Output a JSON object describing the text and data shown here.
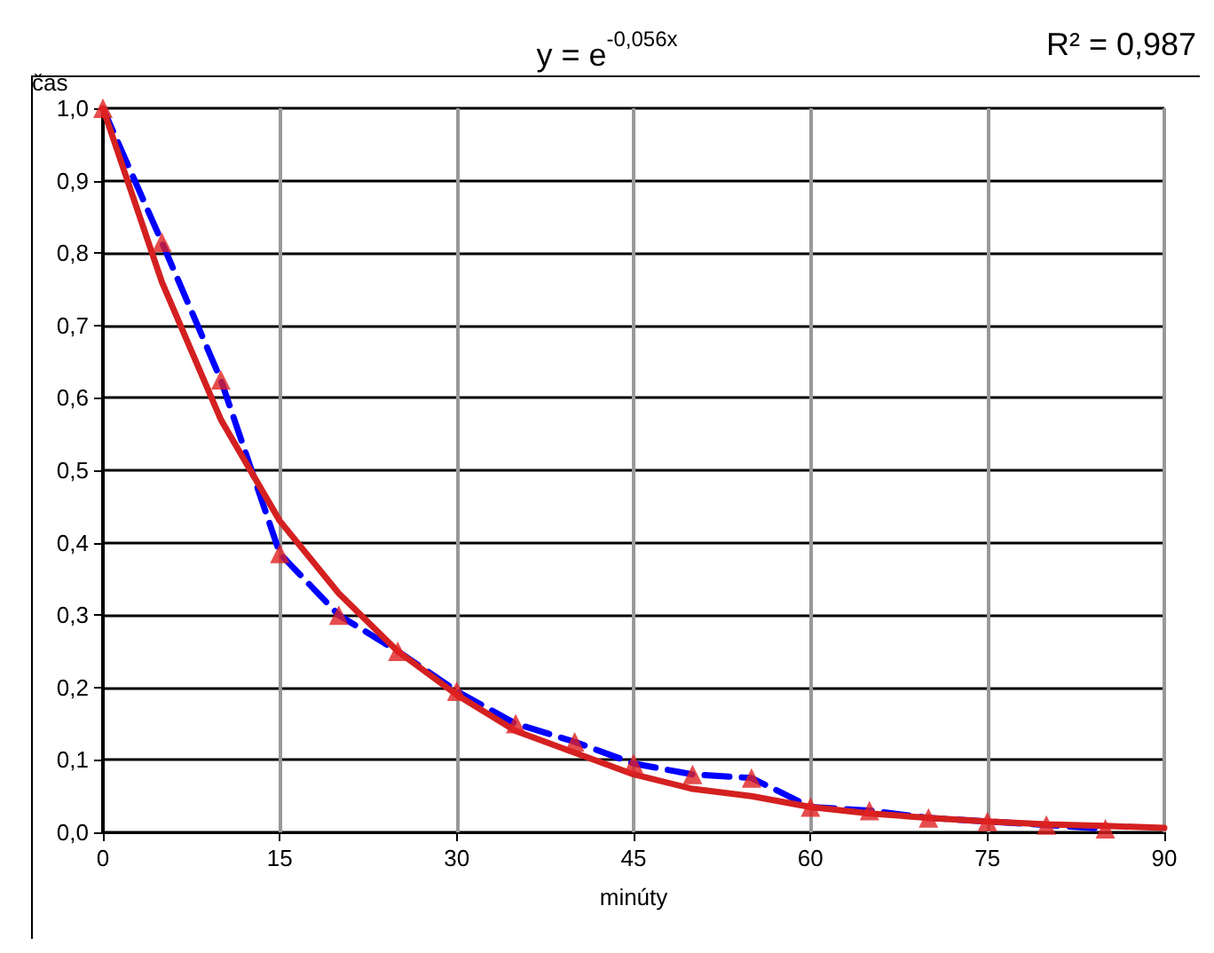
{
  "chart_data": {
    "type": "line",
    "xlabel": "minúty",
    "ylabel": "čas",
    "annotations": [
      "y = e$^{-0,056x}$",
      "R² = 0,987"
    ],
    "x": [
      0,
      5,
      10,
      15,
      20,
      25,
      30,
      35,
      40,
      45,
      50,
      55,
      60,
      65,
      70,
      75,
      80,
      85
    ],
    "series": [
      {
        "color": "#0000ff",
        "line_style": "dashed",
        "marker": "none",
        "values": [
          1.0,
          0.815,
          0.625,
          0.385,
          0.3,
          0.25,
          0.195,
          0.15,
          0.125,
          0.095,
          0.08,
          0.075,
          0.035,
          0.03,
          0.02,
          0.015,
          0.01,
          0.005
        ]
      },
      {
        "type": "scatter",
        "color": "#e02020",
        "marker": "triangle",
        "values": [
          1.0,
          0.815,
          0.625,
          0.385,
          0.3,
          0.25,
          0.195,
          0.15,
          0.125,
          0.095,
          0.08,
          0.075,
          0.035,
          0.03,
          0.02,
          0.015,
          0.01,
          0.005
        ]
      },
      {
        "type": "line",
        "color": "#d42020",
        "line_style": "solid",
        "marker": "none",
        "x": [
          0,
          5,
          10,
          15,
          20,
          25,
          30,
          35,
          40,
          45,
          50,
          55,
          60,
          65,
          70,
          75,
          80,
          85,
          90
        ],
        "values": [
          1.0,
          0.76,
          0.57,
          0.43,
          0.33,
          0.25,
          0.19,
          0.14,
          0.11,
          0.08,
          0.06,
          0.05,
          0.035,
          0.026,
          0.02,
          0.015,
          0.011,
          0.009,
          0.006
        ]
      }
    ],
    "xlim": [
      0,
      90
    ],
    "xticks": [
      0,
      15,
      30,
      45,
      60,
      75,
      90
    ],
    "ylim": [
      0,
      1
    ],
    "yticks": [
      {
        "value": 0,
        "label": "0,0"
      },
      {
        "value": 0.1,
        "label": "0,1"
      },
      {
        "value": 0.2,
        "label": "0,2"
      },
      {
        "value": 0.3,
        "label": "0,3"
      },
      {
        "value": 0.4,
        "label": "0,4"
      },
      {
        "value": 0.5,
        "label": "0,5"
      },
      {
        "value": 0.6,
        "label": "0,6"
      },
      {
        "value": 0.7,
        "label": "0,7"
      },
      {
        "value": 0.8,
        "label": "0,8"
      },
      {
        "value": 0.9,
        "label": "0,9"
      },
      {
        "value": 1,
        "label": "1,0"
      }
    ],
    "grid": true
  }
}
